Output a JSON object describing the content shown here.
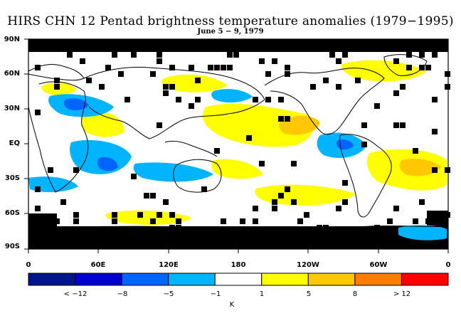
{
  "title": "HIRS CHN 12 Pentad brightness temperature anomalies (1979−1995)",
  "subtitle": "June 5 − 9, 1979",
  "lat_labels": [
    "90N",
    "60N",
    "30N",
    "EQ",
    "30S",
    "60S",
    "90S"
  ],
  "lon_labels": [
    "0",
    "60E",
    "120E",
    "180",
    "120W",
    "60W",
    "0"
  ],
  "colorbar": {
    "unit": "K",
    "labels": [
      "< −12",
      "−8",
      "−5",
      "−1",
      "1",
      "5",
      "8",
      "> 12"
    ],
    "colors": [
      "#00148c",
      "#0000c8",
      "#0064ff",
      "#00b4ff",
      "#ffffff",
      "#ffff00",
      "#ffc800",
      "#ff7d00",
      "#ff0000"
    ]
  },
  "map": {
    "land_color": "#ffffff",
    "missing_color": "#000000",
    "coastline_color": "#000000"
  }
}
